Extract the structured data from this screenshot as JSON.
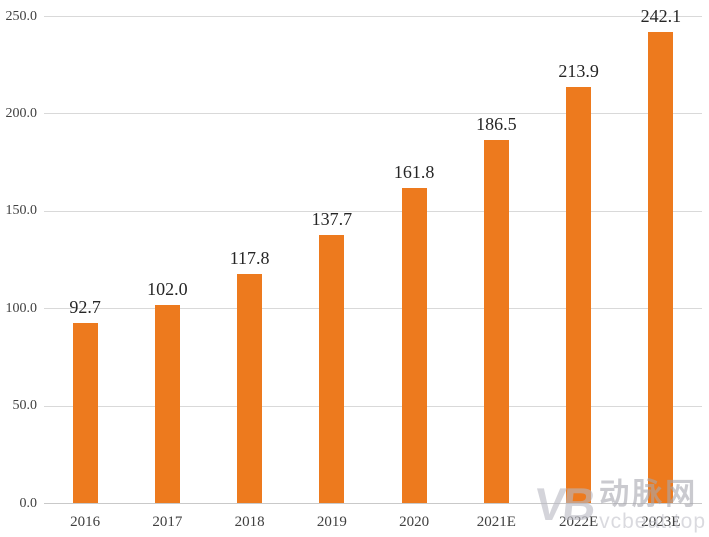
{
  "chart_data": {
    "type": "bar",
    "categories": [
      "2016",
      "2017",
      "2018",
      "2019",
      "2020",
      "2021E",
      "2022E",
      "2023E"
    ],
    "values": [
      92.7,
      102.0,
      117.8,
      137.7,
      161.8,
      186.5,
      213.9,
      242.1
    ],
    "value_labels": [
      "92.7",
      "102.0",
      "117.8",
      "137.7",
      "161.8",
      "186.5",
      "213.9",
      "242.1"
    ],
    "title": "",
    "xlabel": "",
    "ylabel": "",
    "ylim": [
      0,
      250
    ],
    "y_tick_values": [
      0,
      50,
      100,
      150,
      200,
      250
    ],
    "y_tick_labels": [
      "0.0",
      "50.0",
      "100.0",
      "150.0",
      "200.0",
      "250.0"
    ],
    "grid": true,
    "legend": "none",
    "bar_color": "#ed7a1e",
    "grid_color": "#d9d9d9",
    "axis_line_color": "#c9c9c9",
    "tick_text_color": "#404040",
    "value_text_color": "#262626"
  },
  "watermark": {
    "logo": "VB",
    "name_cn": "动脉网",
    "site": "vcbeat.top"
  }
}
